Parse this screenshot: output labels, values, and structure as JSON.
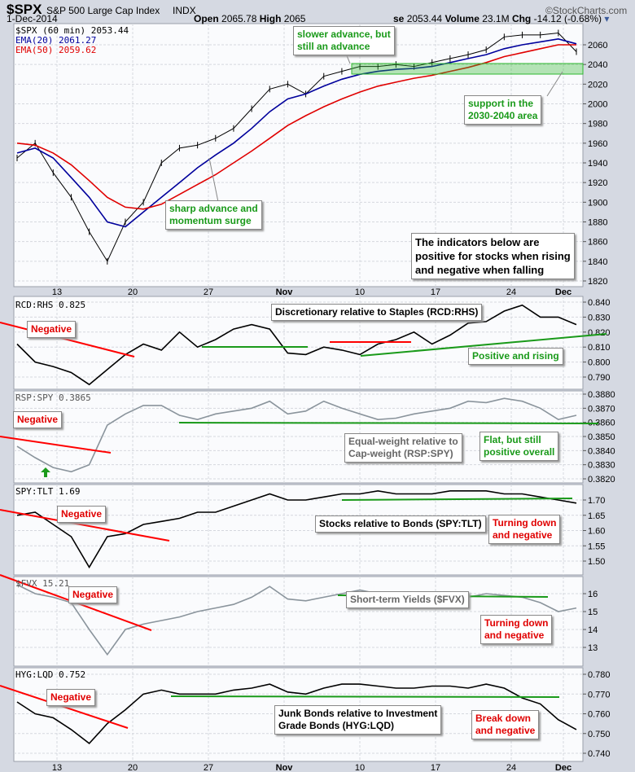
{
  "header": {
    "symbol": "$SPX",
    "name": "S&P 500 Large Cap Index",
    "exchange": "INDX",
    "date": "1-Dec-2014",
    "open_label": "Open",
    "open": "2065.78",
    "high_label": "High",
    "high": "2065",
    "close_label": "se",
    "close": "2053.44",
    "volume_label": "Volume",
    "volume": "23.1M",
    "chg_label": "Chg",
    "chg": "-14.12 (-0.68%)",
    "credit": "©StockCharts.com"
  },
  "colors": {
    "price": "#000000",
    "ema20": "#00009c",
    "ema50": "#e00000",
    "ratio_gray": "#8a949c",
    "green": "#1a9a1a",
    "red": "#ff0000"
  },
  "chart_data": [
    {
      "type": "line",
      "title": "$SPX (60 min) 2053.44",
      "legend": [
        "$SPX (60 min) 2053.44",
        "EMA(20) 2061.27",
        "EMA(50) 2059.62"
      ],
      "yticks": [
        1820,
        1840,
        1860,
        1880,
        1900,
        1920,
        1940,
        1960,
        1980,
        2000,
        2020,
        2040,
        2060
      ],
      "ylim": [
        1815,
        2080
      ],
      "series": [
        {
          "name": "$SPX",
          "values": [
            1945,
            1960,
            1930,
            1905,
            1870,
            1840,
            1880,
            1900,
            1940,
            1955,
            1958,
            1965,
            1975,
            1995,
            2015,
            2020,
            2010,
            2028,
            2033,
            2038,
            2038,
            2040,
            2038,
            2042,
            2046,
            2050,
            2055,
            2068,
            2070,
            2070,
            2072,
            2053
          ]
        },
        {
          "name": "EMA(20)",
          "values": [
            1950,
            1955,
            1945,
            1925,
            1905,
            1880,
            1875,
            1890,
            1905,
            1920,
            1935,
            1948,
            1960,
            1975,
            1992,
            2005,
            2010,
            2018,
            2025,
            2030,
            2033,
            2035,
            2036,
            2038,
            2042,
            2046,
            2050,
            2056,
            2060,
            2063,
            2066,
            2061
          ]
        },
        {
          "name": "EMA(50)",
          "values": [
            1960,
            1958,
            1950,
            1938,
            1922,
            1905,
            1895,
            1893,
            1898,
            1908,
            1918,
            1928,
            1940,
            1952,
            1965,
            1978,
            1988,
            1997,
            2005,
            2012,
            2018,
            2022,
            2026,
            2029,
            2033,
            2037,
            2042,
            2048,
            2052,
            2056,
            2060,
            2060
          ]
        }
      ]
    },
    {
      "type": "line",
      "title": "RCD:RHS 0.825",
      "yticks": [
        "0.790",
        "0.800",
        "0.810",
        "0.820",
        "0.830",
        "0.840"
      ],
      "values": [
        0.812,
        0.8,
        0.797,
        0.793,
        0.785,
        0.795,
        0.805,
        0.812,
        0.808,
        0.82,
        0.81,
        0.815,
        0.822,
        0.825,
        0.822,
        0.806,
        0.805,
        0.81,
        0.808,
        0.805,
        0.812,
        0.815,
        0.82,
        0.812,
        0.818,
        0.826,
        0.827,
        0.834,
        0.838,
        0.83,
        0.83,
        0.825
      ]
    },
    {
      "type": "line",
      "title": "RSP:SPY 0.3865",
      "yticks": [
        "0.3820",
        "0.3830",
        "0.3840",
        "0.3850",
        "0.3860",
        "0.3870",
        "0.3880"
      ],
      "values": [
        0.3843,
        0.3835,
        0.3828,
        0.3825,
        0.383,
        0.3858,
        0.3866,
        0.3872,
        0.3872,
        0.3865,
        0.3862,
        0.3866,
        0.3868,
        0.387,
        0.3875,
        0.3866,
        0.3868,
        0.3875,
        0.387,
        0.3866,
        0.3862,
        0.3863,
        0.3866,
        0.3868,
        0.387,
        0.3875,
        0.3874,
        0.3877,
        0.3875,
        0.387,
        0.3862,
        0.3865
      ]
    },
    {
      "type": "line",
      "title": "SPY:TLT 1.69",
      "yticks": [
        "1.50",
        "1.55",
        "1.60",
        "1.65",
        "1.70"
      ],
      "values": [
        1.65,
        1.66,
        1.62,
        1.58,
        1.48,
        1.58,
        1.59,
        1.62,
        1.63,
        1.64,
        1.66,
        1.66,
        1.68,
        1.7,
        1.72,
        1.7,
        1.7,
        1.71,
        1.72,
        1.72,
        1.73,
        1.72,
        1.72,
        1.72,
        1.73,
        1.73,
        1.73,
        1.72,
        1.72,
        1.71,
        1.7,
        1.69
      ]
    },
    {
      "type": "line",
      "title": "$FVX 15.21",
      "yticks": [
        "13",
        "14",
        "15",
        "16"
      ],
      "values": [
        16.5,
        16.0,
        15.8,
        15.5,
        14.0,
        12.6,
        14.0,
        14.3,
        14.5,
        14.7,
        15.0,
        15.2,
        15.4,
        15.8,
        16.4,
        15.7,
        15.6,
        15.8,
        16.0,
        16.2,
        16.0,
        16.0,
        15.9,
        15.8,
        15.9,
        15.8,
        16.0,
        15.9,
        15.8,
        15.5,
        15.0,
        15.2
      ]
    },
    {
      "type": "line",
      "title": "HYG:LQD 0.752",
      "yticks": [
        "0.740",
        "0.750",
        "0.760",
        "0.770",
        "0.780"
      ],
      "values": [
        0.766,
        0.76,
        0.758,
        0.752,
        0.745,
        0.755,
        0.762,
        0.77,
        0.772,
        0.77,
        0.77,
        0.77,
        0.772,
        0.773,
        0.775,
        0.771,
        0.77,
        0.773,
        0.775,
        0.775,
        0.774,
        0.773,
        0.773,
        0.774,
        0.774,
        0.773,
        0.775,
        0.773,
        0.768,
        0.765,
        0.757,
        0.752
      ]
    }
  ],
  "xticks": [
    "13",
    "20",
    "27",
    "Nov",
    "10",
    "17",
    "24",
    "Dec"
  ],
  "notes": {
    "slower": "slower advance, but\nstill an advance",
    "support": "support in the\n2030-2040 area",
    "sharp": "sharp advance and\nmomentum surge",
    "indicators": "The indicators below are\npositive for stocks when rising\nand negative when falling",
    "rcd_neg": "Negative",
    "rcd_title": "Discretionary relative to Staples (RCD:RHS)",
    "rcd_pos": "Positive and rising",
    "rsp_neg": "Negative",
    "rsp_title": "Equal-weight relative to\nCap-weight (RSP:SPY)",
    "rsp_flat": "Flat, but still\npositive overall",
    "spy_neg": "Negative",
    "spy_title": "Stocks relative to Bonds (SPY:TLT)",
    "spy_down": "Turning down\nand negative",
    "fvx_neg": "Negative",
    "fvx_title": "Short-term Yields ($FVX)",
    "fvx_down": "Turning down\nand negative",
    "hyg_neg": "Negative",
    "hyg_title": "Junk Bonds relative to Investment\nGrade Bonds (HYG:LQD)",
    "hyg_down": "Break down\nand negative"
  }
}
